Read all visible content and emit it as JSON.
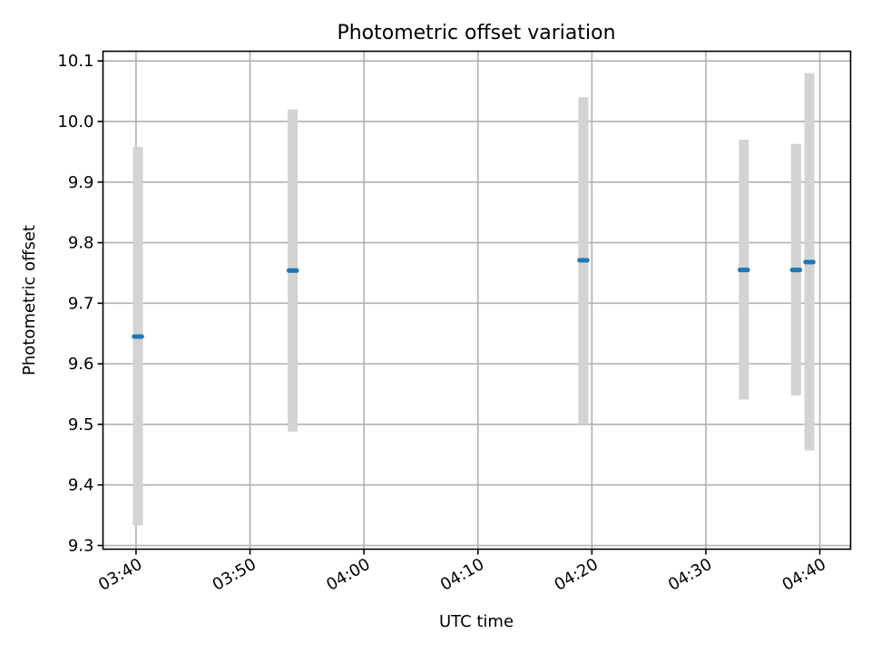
{
  "chart_data": {
    "type": "scatter",
    "title": "Photometric offset variation",
    "xlabel": "UTC time",
    "ylabel": "Photometric offset",
    "x_tick_labels": [
      "03:40",
      "03:50",
      "04:00",
      "04:10",
      "04:20",
      "04:30",
      "04:40"
    ],
    "y_tick_labels": [
      "9.3",
      "9.4",
      "9.5",
      "9.6",
      "9.7",
      "9.8",
      "9.9",
      "10.0",
      "10.1"
    ],
    "xlim": [
      "03:37:06",
      "04:42:42"
    ],
    "ylim": [
      9.294,
      10.116
    ],
    "grid": true,
    "colors": {
      "points": "#1f77b4",
      "error_band": "#d3d3d3"
    },
    "series": [
      {
        "points": [
          {
            "times": [
              "03:39:50",
              "03:40:00",
              "03:40:10",
              "03:40:20",
              "03:40:30"
            ],
            "y": 9.645,
            "ymin": 9.333,
            "ymax": 9.958
          },
          {
            "times": [
              "03:53:25",
              "03:53:35",
              "03:53:45",
              "03:53:55",
              "03:54:05"
            ],
            "y": 9.754,
            "ymin": 9.488,
            "ymax": 10.02
          },
          {
            "times": [
              "04:18:55",
              "04:19:05",
              "04:19:15",
              "04:19:25",
              "04:19:35"
            ],
            "y": 9.771,
            "ymin": 9.5,
            "ymax": 10.04
          },
          {
            "times": [
              "04:33:00",
              "04:33:10",
              "04:33:20",
              "04:33:30",
              "04:33:40"
            ],
            "y": 9.755,
            "ymin": 9.541,
            "ymax": 9.97
          },
          {
            "times": [
              "04:37:35",
              "04:37:45",
              "04:37:55",
              "04:38:05",
              "04:38:15"
            ],
            "y": 9.755,
            "ymin": 9.548,
            "ymax": 9.963
          },
          {
            "times": [
              "04:38:45",
              "04:38:55",
              "04:39:05",
              "04:39:15",
              "04:39:25"
            ],
            "y": 9.768,
            "ymin": 9.457,
            "ymax": 10.08
          }
        ]
      }
    ]
  }
}
